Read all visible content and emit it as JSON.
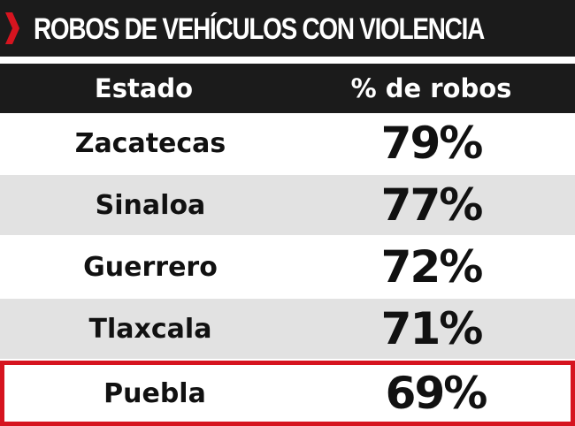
{
  "title": "ROBOS DE VEHÍCULOS CON VIOLENCIA",
  "colors": {
    "header_bg": "#1b1b1b",
    "accent": "#d6141f",
    "row_alt": "#e2e2e2"
  },
  "icons": {
    "title_marker": "chevron-right-icon"
  },
  "chart_data": {
    "type": "table",
    "title": "ROBOS DE VEHÍCULOS CON VIOLENCIA",
    "columns": [
      "Estado",
      "% de robos"
    ],
    "rows": [
      {
        "estado": "Zacatecas",
        "value": 79,
        "label": "79%"
      },
      {
        "estado": "Sinaloa",
        "value": 77,
        "label": "77%"
      },
      {
        "estado": "Guerrero",
        "value": 72,
        "label": "72%"
      },
      {
        "estado": "Tlaxcala",
        "value": 71,
        "label": "71%"
      },
      {
        "estado": "Puebla",
        "value": 69,
        "label": "69%",
        "highlighted": true
      }
    ]
  }
}
